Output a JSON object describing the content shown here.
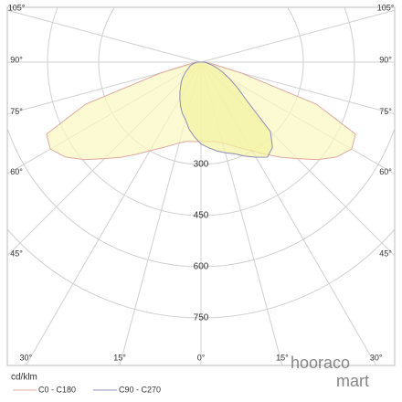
{
  "chart_data": {
    "type": "polar",
    "unit_label": "cd/klm",
    "angles": [
      -90,
      -85,
      -80,
      -75,
      -70,
      -65,
      -60,
      -55,
      -50,
      -45,
      -40,
      -35,
      -30,
      -25,
      -20,
      -15,
      -10,
      -5,
      0,
      5,
      10,
      15,
      20,
      25,
      30,
      35,
      40,
      45,
      50,
      55,
      60,
      65,
      70,
      75,
      80,
      85,
      90
    ],
    "series": [
      {
        "name": "C0 - C180",
        "color": "#e0a8a0",
        "fill": "#fbf8c0",
        "values": [
          10,
          20,
          40,
          120,
          360,
          500,
          510,
          485,
          445,
          400,
          364,
          330,
          300,
          278,
          260,
          245,
          236,
          234,
          233,
          234,
          236,
          245,
          260,
          278,
          300,
          330,
          364,
          400,
          445,
          485,
          510,
          500,
          360,
          120,
          40,
          20,
          10
        ]
      },
      {
        "name": "C90 - C270",
        "color": "#8c8cb8",
        "fill": "#f4f2a0",
        "values": [
          10,
          15,
          20,
          28,
          35,
          40,
          48,
          58,
          70,
          82,
          93,
          108,
          124,
          142,
          160,
          175,
          200,
          220,
          240,
          252,
          264,
          275,
          286,
          304,
          322,
          340,
          326,
          288,
          175,
          130,
          96,
          70,
          50,
          35,
          20,
          15,
          10
        ]
      }
    ],
    "rlim": [
      0,
      750
    ],
    "rticks": [
      300,
      450,
      600,
      750
    ],
    "angle_ticks": [
      {
        "value": -105,
        "label": "105°"
      },
      {
        "value": -90,
        "label": "90°"
      },
      {
        "value": -75,
        "label": "75°"
      },
      {
        "value": -60,
        "label": "60°"
      },
      {
        "value": -45,
        "label": "45°"
      },
      {
        "value": -30,
        "label": "30°"
      },
      {
        "value": -15,
        "label": "15°"
      },
      {
        "value": 0,
        "label": "0°"
      },
      {
        "value": 15,
        "label": "15°"
      },
      {
        "value": 30,
        "label": "30°"
      },
      {
        "value": 45,
        "label": "45°"
      },
      {
        "value": 60,
        "label": "60°"
      },
      {
        "value": 75,
        "label": "75°"
      },
      {
        "value": 90,
        "label": "90°"
      },
      {
        "value": 105,
        "label": "105°"
      }
    ],
    "logo": [
      "hooraco",
      "mart"
    ]
  }
}
